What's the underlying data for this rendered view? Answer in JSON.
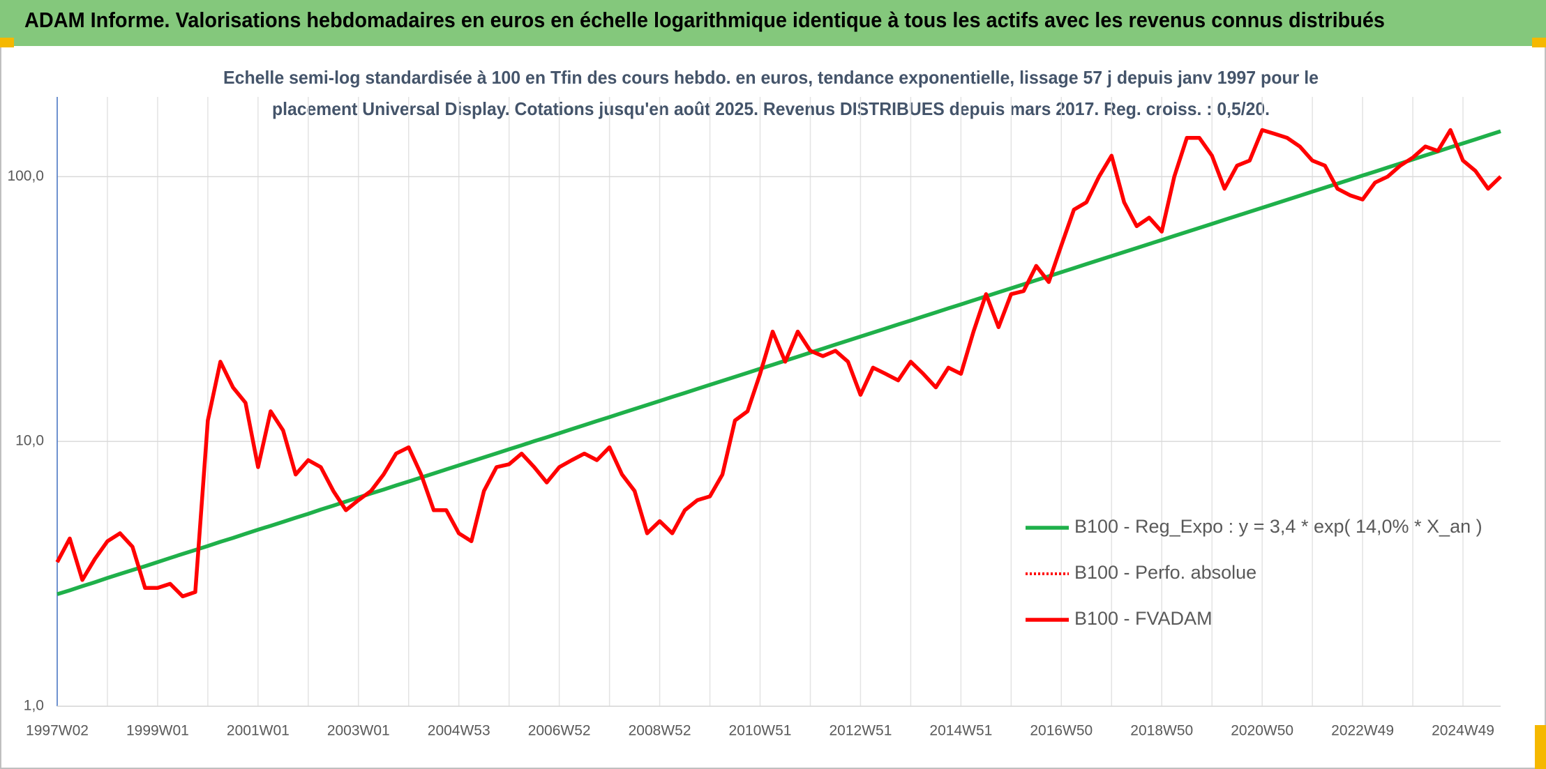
{
  "chart_data": {
    "type": "line",
    "title": "ADAM Informe. Valorisations hebdomadaires en euros en échelle logarithmique identique à tous les actifs avec les revenus connus distribués",
    "subtitle": [
      "Echelle semi-log standardisée à 100 en Tfin des cours hebdo. en euros, tendance exponentielle, lissage 57 j depuis janv 1997 pour le",
      "placement Universal Display. Cotations jusqu'en août 2025. Revenus DISTRIBUES depuis mars 2017. Reg. croiss. : 0,5/20."
    ],
    "log_scale_y": true,
    "grid": true,
    "legend": "center-right",
    "ylim": [
      1,
      200
    ],
    "yticks": [
      {
        "value": 1,
        "label": "1,0"
      },
      {
        "value": 10,
        "label": "10,0"
      },
      {
        "value": 100,
        "label": "100,0"
      }
    ],
    "categories": [
      "1997W02",
      null,
      null,
      null,
      null,
      null,
      null,
      null,
      "1999W01",
      null,
      null,
      null,
      null,
      null,
      null,
      null,
      "2001W01",
      null,
      null,
      null,
      null,
      null,
      null,
      null,
      "2003W01",
      null,
      null,
      null,
      null,
      null,
      null,
      null,
      "2004W53",
      null,
      null,
      null,
      null,
      null,
      null,
      null,
      "2006W52",
      null,
      null,
      null,
      null,
      null,
      null,
      null,
      "2008W52",
      null,
      null,
      null,
      null,
      null,
      null,
      null,
      "2010W51",
      null,
      null,
      null,
      null,
      null,
      null,
      null,
      "2012W51",
      null,
      null,
      null,
      null,
      null,
      null,
      null,
      "2014W51",
      null,
      null,
      null,
      null,
      null,
      null,
      null,
      "2016W50",
      null,
      null,
      null,
      null,
      null,
      null,
      null,
      "2018W50",
      null,
      null,
      null,
      null,
      null,
      null,
      null,
      "2020W50",
      null,
      null,
      null,
      null,
      null,
      null,
      null,
      "2022W49",
      null,
      null,
      null,
      null,
      null,
      null,
      null,
      "2024W49",
      null,
      null,
      null
    ],
    "series": [
      {
        "name": "B100 - Reg_Expo : y = 3,4 * exp( 14,0% *  X_an )",
        "color": "#1fb04a",
        "style": "solid",
        "values": [
          2.65,
          2.74,
          2.84,
          2.94,
          3.05,
          3.16,
          3.27,
          3.38,
          3.5,
          3.63,
          3.76,
          3.89,
          4.03,
          4.18,
          4.32,
          4.48,
          4.64,
          4.8,
          4.97,
          5.15,
          5.33,
          5.53,
          5.72,
          5.93,
          6.14,
          6.36,
          6.58,
          6.82,
          7.06,
          7.31,
          7.57,
          7.84,
          8.12,
          8.41,
          8.71,
          9.02,
          9.34,
          9.67,
          10.02,
          10.37,
          10.74,
          11.13,
          11.53,
          11.94,
          12.36,
          12.8,
          13.26,
          13.73,
          14.22,
          14.73,
          15.25,
          15.79,
          16.36,
          16.94,
          17.54,
          18.17,
          18.82,
          19.48,
          20.18,
          20.9,
          21.64,
          22.41,
          23.21,
          24.04,
          24.89,
          25.78,
          26.7,
          27.65,
          28.63,
          29.65,
          30.71,
          31.8,
          32.93,
          34.11,
          35.32,
          36.58,
          37.88,
          39.23,
          40.63,
          42.07,
          43.57,
          45.13,
          46.74,
          48.4,
          50.12,
          51.91,
          53.76,
          55.67,
          57.65,
          59.71,
          61.84,
          64.04,
          66.32,
          68.68,
          71.13,
          73.66,
          76.28,
          79.0,
          81.81,
          84.72,
          87.74,
          90.87,
          94.11,
          97.46,
          100.93,
          104.5,
          108.3,
          112.1,
          116.1,
          120.3,
          124.5,
          129.0,
          133.6,
          138.3,
          143.3,
          148.4
        ]
      },
      {
        "name": "B100 - Perfo. absolue",
        "color": "#ff0000",
        "style": "dotted",
        "values": [
          3.5,
          4.3,
          3.0,
          3.6,
          4.2,
          4.5,
          4.0,
          2.8,
          2.8,
          2.9,
          2.6,
          2.7,
          12,
          20,
          16,
          14,
          8,
          13,
          11,
          7.5,
          8.5,
          8,
          6.5,
          5.5,
          6,
          6.5,
          7.5,
          9,
          9.5,
          7.5,
          5.5,
          5.5,
          4.5,
          4.2,
          6.5,
          8,
          8.2,
          9,
          8,
          7,
          8,
          8.5,
          9,
          8.5,
          9.5,
          7.5,
          6.5,
          4.5,
          5,
          4.5,
          5.5,
          6,
          6.2,
          7.5,
          12,
          13,
          18,
          26,
          20,
          26,
          22,
          21,
          22,
          20,
          15,
          19,
          18,
          17,
          20,
          18,
          16,
          19,
          18,
          26,
          36,
          27,
          36,
          37,
          46,
          40,
          55,
          75,
          80,
          100,
          120,
          80,
          65,
          70,
          62,
          100,
          140,
          140,
          120,
          90,
          110,
          115,
          150,
          145,
          140,
          130,
          115,
          110,
          90,
          85,
          82,
          95,
          100,
          110,
          118,
          130,
          125,
          150,
          115,
          105,
          90,
          100
        ]
      },
      {
        "name": "B100 - FVADAM",
        "color": "#ff0000",
        "style": "solid",
        "values": [
          3.5,
          4.3,
          3.0,
          3.6,
          4.2,
          4.5,
          4.0,
          2.8,
          2.8,
          2.9,
          2.6,
          2.7,
          12,
          20,
          16,
          14,
          8,
          13,
          11,
          7.5,
          8.5,
          8,
          6.5,
          5.5,
          6,
          6.5,
          7.5,
          9,
          9.5,
          7.5,
          5.5,
          5.5,
          4.5,
          4.2,
          6.5,
          8,
          8.2,
          9,
          8,
          7,
          8,
          8.5,
          9,
          8.5,
          9.5,
          7.5,
          6.5,
          4.5,
          5,
          4.5,
          5.5,
          6,
          6.2,
          7.5,
          12,
          13,
          18,
          26,
          20,
          26,
          22,
          21,
          22,
          20,
          15,
          19,
          18,
          17,
          20,
          18,
          16,
          19,
          18,
          26,
          36,
          27,
          36,
          37,
          46,
          40,
          55,
          75,
          80,
          100,
          120,
          80,
          65,
          70,
          62,
          100,
          140,
          140,
          120,
          90,
          110,
          115,
          150,
          145,
          140,
          130,
          115,
          110,
          90,
          85,
          82,
          95,
          100,
          110,
          118,
          130,
          125,
          150,
          115,
          105,
          90,
          100
        ]
      }
    ]
  }
}
